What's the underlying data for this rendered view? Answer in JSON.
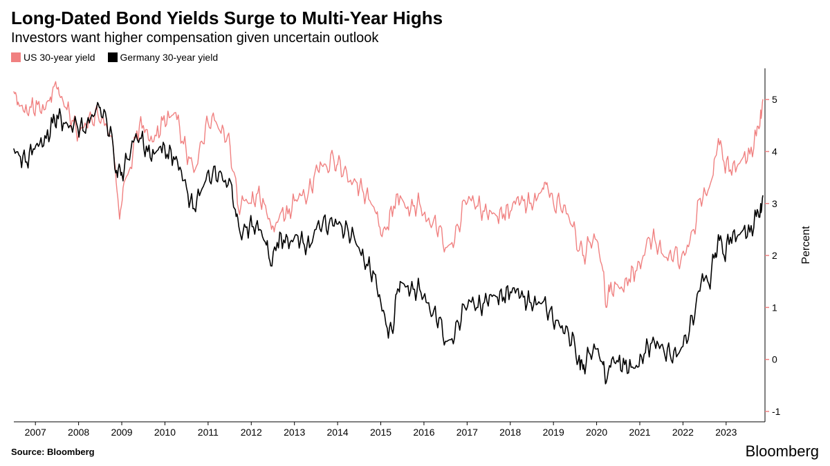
{
  "title": "Long-Dated Bond Yields Surge to Multi-Year Highs",
  "subtitle": "Investors want higher compensation given uncertain outlook",
  "source_label": "Source: Bloomberg",
  "brand_label": "Bloomberg",
  "chart": {
    "type": "line",
    "background_color": "#ffffff",
    "plot_border_color": "#000000",
    "axis_tick_color": "#f08080",
    "x": {
      "min": 2006.5,
      "max": 2023.9,
      "tick_labels": [
        "2007",
        "2008",
        "2009",
        "2010",
        "2011",
        "2012",
        "2013",
        "2014",
        "2015",
        "2016",
        "2017",
        "2018",
        "2019",
        "2020",
        "2021",
        "2022",
        "2023"
      ],
      "tick_positions": [
        2007,
        2008,
        2009,
        2010,
        2011,
        2012,
        2013,
        2014,
        2015,
        2016,
        2017,
        2018,
        2019,
        2020,
        2021,
        2022,
        2023
      ],
      "label_fontsize": 14
    },
    "y": {
      "min": -1.2,
      "max": 5.6,
      "tick_labels": [
        "-1",
        "0",
        "1",
        "2",
        "3",
        "4",
        "5"
      ],
      "tick_positions": [
        -1,
        0,
        1,
        2,
        3,
        4,
        5
      ],
      "axis_label": "Percent",
      "axis_label_fontsize": 16,
      "label_fontsize": 14,
      "side": "right",
      "tick_color": "#f08080"
    },
    "legend": {
      "position": "top-left",
      "fontsize": 14,
      "items": [
        {
          "label": "US 30-year yield",
          "color": "#f08080"
        },
        {
          "label": "Germany 30-year yield",
          "color": "#000000"
        }
      ]
    },
    "series": [
      {
        "name": "US 30-year yield",
        "color": "#f08080",
        "line_width": 1.4,
        "data": [
          [
            2006.5,
            5.15
          ],
          [
            2006.6,
            4.95
          ],
          [
            2006.75,
            4.75
          ],
          [
            2006.9,
            4.85
          ],
          [
            2007.05,
            4.9
          ],
          [
            2007.2,
            4.8
          ],
          [
            2007.35,
            5.05
          ],
          [
            2007.45,
            5.3
          ],
          [
            2007.55,
            5.1
          ],
          [
            2007.7,
            4.85
          ],
          [
            2007.85,
            4.6
          ],
          [
            2008.0,
            4.35
          ],
          [
            2008.15,
            4.55
          ],
          [
            2008.3,
            4.65
          ],
          [
            2008.45,
            4.7
          ],
          [
            2008.6,
            4.5
          ],
          [
            2008.75,
            4.3
          ],
          [
            2008.85,
            3.7
          ],
          [
            2008.95,
            2.7
          ],
          [
            2009.05,
            3.4
          ],
          [
            2009.2,
            3.7
          ],
          [
            2009.35,
            4.4
          ],
          [
            2009.5,
            4.5
          ],
          [
            2009.65,
            4.2
          ],
          [
            2009.8,
            4.3
          ],
          [
            2009.95,
            4.6
          ],
          [
            2010.1,
            4.65
          ],
          [
            2010.25,
            4.75
          ],
          [
            2010.4,
            4.2
          ],
          [
            2010.55,
            3.9
          ],
          [
            2010.7,
            3.65
          ],
          [
            2010.85,
            4.2
          ],
          [
            2011.0,
            4.55
          ],
          [
            2011.15,
            4.6
          ],
          [
            2011.3,
            4.35
          ],
          [
            2011.45,
            4.3
          ],
          [
            2011.6,
            3.6
          ],
          [
            2011.7,
            2.9
          ],
          [
            2011.85,
            3.05
          ],
          [
            2012.0,
            3.0
          ],
          [
            2012.15,
            3.2
          ],
          [
            2012.3,
            3.0
          ],
          [
            2012.45,
            2.6
          ],
          [
            2012.55,
            2.55
          ],
          [
            2012.7,
            2.85
          ],
          [
            2012.85,
            2.8
          ],
          [
            2013.0,
            3.05
          ],
          [
            2013.15,
            3.15
          ],
          [
            2013.3,
            3.1
          ],
          [
            2013.45,
            3.5
          ],
          [
            2013.6,
            3.8
          ],
          [
            2013.75,
            3.7
          ],
          [
            2013.9,
            3.9
          ],
          [
            2014.0,
            3.75
          ],
          [
            2014.15,
            3.65
          ],
          [
            2014.3,
            3.45
          ],
          [
            2014.45,
            3.4
          ],
          [
            2014.6,
            3.2
          ],
          [
            2014.75,
            3.05
          ],
          [
            2014.9,
            2.8
          ],
          [
            2015.0,
            2.4
          ],
          [
            2015.15,
            2.55
          ],
          [
            2015.3,
            2.95
          ],
          [
            2015.45,
            3.15
          ],
          [
            2015.6,
            2.9
          ],
          [
            2015.75,
            2.95
          ],
          [
            2015.9,
            3.0
          ],
          [
            2016.05,
            2.65
          ],
          [
            2016.2,
            2.6
          ],
          [
            2016.35,
            2.55
          ],
          [
            2016.5,
            2.15
          ],
          [
            2016.65,
            2.25
          ],
          [
            2016.8,
            2.55
          ],
          [
            2016.95,
            3.05
          ],
          [
            2017.1,
            3.05
          ],
          [
            2017.25,
            2.95
          ],
          [
            2017.4,
            2.85
          ],
          [
            2017.55,
            2.85
          ],
          [
            2017.7,
            2.75
          ],
          [
            2017.85,
            2.8
          ],
          [
            2018.0,
            2.85
          ],
          [
            2018.15,
            3.1
          ],
          [
            2018.3,
            3.05
          ],
          [
            2018.45,
            3.0
          ],
          [
            2018.6,
            3.05
          ],
          [
            2018.75,
            3.3
          ],
          [
            2018.85,
            3.4
          ],
          [
            2019.0,
            3.0
          ],
          [
            2019.15,
            3.0
          ],
          [
            2019.3,
            2.8
          ],
          [
            2019.45,
            2.55
          ],
          [
            2019.6,
            2.1
          ],
          [
            2019.7,
            2.0
          ],
          [
            2019.85,
            2.25
          ],
          [
            2020.0,
            2.3
          ],
          [
            2020.15,
            1.7
          ],
          [
            2020.22,
            1.0
          ],
          [
            2020.3,
            1.3
          ],
          [
            2020.45,
            1.45
          ],
          [
            2020.6,
            1.35
          ],
          [
            2020.75,
            1.55
          ],
          [
            2020.9,
            1.7
          ],
          [
            2021.05,
            1.9
          ],
          [
            2021.2,
            2.35
          ],
          [
            2021.35,
            2.3
          ],
          [
            2021.5,
            2.05
          ],
          [
            2021.65,
            1.9
          ],
          [
            2021.8,
            2.05
          ],
          [
            2021.95,
            1.9
          ],
          [
            2022.1,
            2.2
          ],
          [
            2022.25,
            2.5
          ],
          [
            2022.4,
            3.1
          ],
          [
            2022.55,
            3.15
          ],
          [
            2022.7,
            3.55
          ],
          [
            2022.82,
            4.25
          ],
          [
            2022.95,
            3.8
          ],
          [
            2023.1,
            3.65
          ],
          [
            2023.25,
            3.7
          ],
          [
            2023.4,
            3.9
          ],
          [
            2023.55,
            3.95
          ],
          [
            2023.7,
            4.3
          ],
          [
            2023.8,
            4.8
          ],
          [
            2023.85,
            5.0
          ]
        ]
      },
      {
        "name": "Germany 30-year yield",
        "color": "#000000",
        "line_width": 1.6,
        "data": [
          [
            2006.5,
            4.05
          ],
          [
            2006.65,
            3.9
          ],
          [
            2006.8,
            3.8
          ],
          [
            2006.95,
            4.05
          ],
          [
            2007.1,
            4.15
          ],
          [
            2007.25,
            4.25
          ],
          [
            2007.4,
            4.55
          ],
          [
            2007.5,
            4.7
          ],
          [
            2007.65,
            4.55
          ],
          [
            2007.8,
            4.5
          ],
          [
            2007.95,
            4.55
          ],
          [
            2008.1,
            4.4
          ],
          [
            2008.25,
            4.55
          ],
          [
            2008.4,
            4.8
          ],
          [
            2008.5,
            4.85
          ],
          [
            2008.65,
            4.6
          ],
          [
            2008.8,
            4.1
          ],
          [
            2008.9,
            3.5
          ],
          [
            2009.0,
            3.6
          ],
          [
            2009.15,
            3.85
          ],
          [
            2009.3,
            4.25
          ],
          [
            2009.45,
            4.25
          ],
          [
            2009.6,
            4.0
          ],
          [
            2009.75,
            3.95
          ],
          [
            2009.9,
            4.1
          ],
          [
            2010.05,
            3.95
          ],
          [
            2010.2,
            3.9
          ],
          [
            2010.35,
            3.7
          ],
          [
            2010.5,
            3.3
          ],
          [
            2010.65,
            2.9
          ],
          [
            2010.8,
            3.15
          ],
          [
            2010.95,
            3.45
          ],
          [
            2011.1,
            3.55
          ],
          [
            2011.25,
            3.6
          ],
          [
            2011.4,
            3.45
          ],
          [
            2011.55,
            3.35
          ],
          [
            2011.65,
            2.75
          ],
          [
            2011.75,
            2.4
          ],
          [
            2011.9,
            2.55
          ],
          [
            2012.05,
            2.55
          ],
          [
            2012.2,
            2.5
          ],
          [
            2012.35,
            2.2
          ],
          [
            2012.45,
            1.8
          ],
          [
            2012.6,
            2.25
          ],
          [
            2012.75,
            2.3
          ],
          [
            2012.9,
            2.25
          ],
          [
            2013.05,
            2.4
          ],
          [
            2013.2,
            2.25
          ],
          [
            2013.35,
            2.15
          ],
          [
            2013.5,
            2.5
          ],
          [
            2013.65,
            2.6
          ],
          [
            2013.8,
            2.6
          ],
          [
            2013.95,
            2.7
          ],
          [
            2014.1,
            2.55
          ],
          [
            2014.25,
            2.45
          ],
          [
            2014.4,
            2.3
          ],
          [
            2014.55,
            2.0
          ],
          [
            2014.7,
            1.8
          ],
          [
            2014.85,
            1.65
          ],
          [
            2015.0,
            1.1
          ],
          [
            2015.15,
            0.6
          ],
          [
            2015.28,
            0.5
          ],
          [
            2015.35,
            1.25
          ],
          [
            2015.45,
            1.5
          ],
          [
            2015.6,
            1.4
          ],
          [
            2015.75,
            1.35
          ],
          [
            2015.9,
            1.35
          ],
          [
            2016.05,
            1.1
          ],
          [
            2016.2,
            0.85
          ],
          [
            2016.35,
            0.8
          ],
          [
            2016.5,
            0.35
          ],
          [
            2016.65,
            0.4
          ],
          [
            2016.8,
            0.7
          ],
          [
            2016.95,
            1.0
          ],
          [
            2017.1,
            1.1
          ],
          [
            2017.25,
            1.0
          ],
          [
            2017.4,
            1.1
          ],
          [
            2017.55,
            1.25
          ],
          [
            2017.7,
            1.2
          ],
          [
            2017.85,
            1.2
          ],
          [
            2018.0,
            1.3
          ],
          [
            2018.15,
            1.35
          ],
          [
            2018.3,
            1.2
          ],
          [
            2018.45,
            1.1
          ],
          [
            2018.6,
            1.05
          ],
          [
            2018.75,
            1.1
          ],
          [
            2018.9,
            0.9
          ],
          [
            2019.05,
            0.75
          ],
          [
            2019.2,
            0.65
          ],
          [
            2019.35,
            0.5
          ],
          [
            2019.5,
            0.25
          ],
          [
            2019.62,
            -0.2
          ],
          [
            2019.7,
            -0.1
          ],
          [
            2019.85,
            0.1
          ],
          [
            2020.0,
            0.2
          ],
          [
            2020.15,
            -0.1
          ],
          [
            2020.22,
            -0.45
          ],
          [
            2020.35,
            0.0
          ],
          [
            2020.5,
            -0.05
          ],
          [
            2020.65,
            -0.1
          ],
          [
            2020.8,
            -0.15
          ],
          [
            2020.95,
            -0.15
          ],
          [
            2021.1,
            0.1
          ],
          [
            2021.25,
            0.3
          ],
          [
            2021.4,
            0.35
          ],
          [
            2021.55,
            0.2
          ],
          [
            2021.7,
            0.1
          ],
          [
            2021.85,
            0.05
          ],
          [
            2022.0,
            0.25
          ],
          [
            2022.15,
            0.55
          ],
          [
            2022.3,
            1.05
          ],
          [
            2022.45,
            1.65
          ],
          [
            2022.6,
            1.45
          ],
          [
            2022.75,
            2.05
          ],
          [
            2022.82,
            2.4
          ],
          [
            2022.95,
            2.0
          ],
          [
            2023.1,
            2.35
          ],
          [
            2023.25,
            2.35
          ],
          [
            2023.4,
            2.5
          ],
          [
            2023.55,
            2.45
          ],
          [
            2023.7,
            2.75
          ],
          [
            2023.8,
            3.0
          ],
          [
            2023.85,
            3.15
          ]
        ]
      }
    ]
  }
}
